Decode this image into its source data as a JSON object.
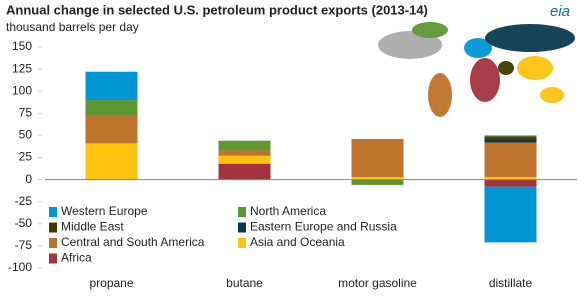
{
  "chart_data": {
    "type": "stacked-bar",
    "title": "Annual change in selected U.S. petroleum product exports (2013-14)",
    "subtitle": "thousand barrels per day",
    "logo": "eia",
    "categories": [
      "propane",
      "butane",
      "motor gasoline",
      "distillate"
    ],
    "series": [
      {
        "name": "Western Europe",
        "color": "#0096d6",
        "values": [
          32,
          0,
          1,
          -63
        ]
      },
      {
        "name": "North America",
        "color": "#5d9732",
        "values": [
          18,
          11,
          -6,
          1
        ]
      },
      {
        "name": "Middle East",
        "color": "#3d3b04",
        "values": [
          0,
          0,
          0,
          3
        ]
      },
      {
        "name": "Eastern Europe and Russia",
        "color": "#0b3a50",
        "values": [
          0,
          0,
          0,
          4
        ]
      },
      {
        "name": "Central and South America",
        "color": "#bd732a",
        "values": [
          31,
          6,
          42,
          39
        ]
      },
      {
        "name": "Asia and Oceania",
        "color": "#ffc20e",
        "values": [
          41,
          9,
          3,
          3
        ]
      },
      {
        "name": "Africa",
        "color": "#a33340",
        "values": [
          0,
          18,
          0,
          -8
        ]
      }
    ],
    "ylim": [
      -100,
      150
    ],
    "yticks": [
      -100,
      -75,
      -50,
      -25,
      0,
      25,
      50,
      75,
      100,
      125,
      150
    ],
    "grid": false
  }
}
